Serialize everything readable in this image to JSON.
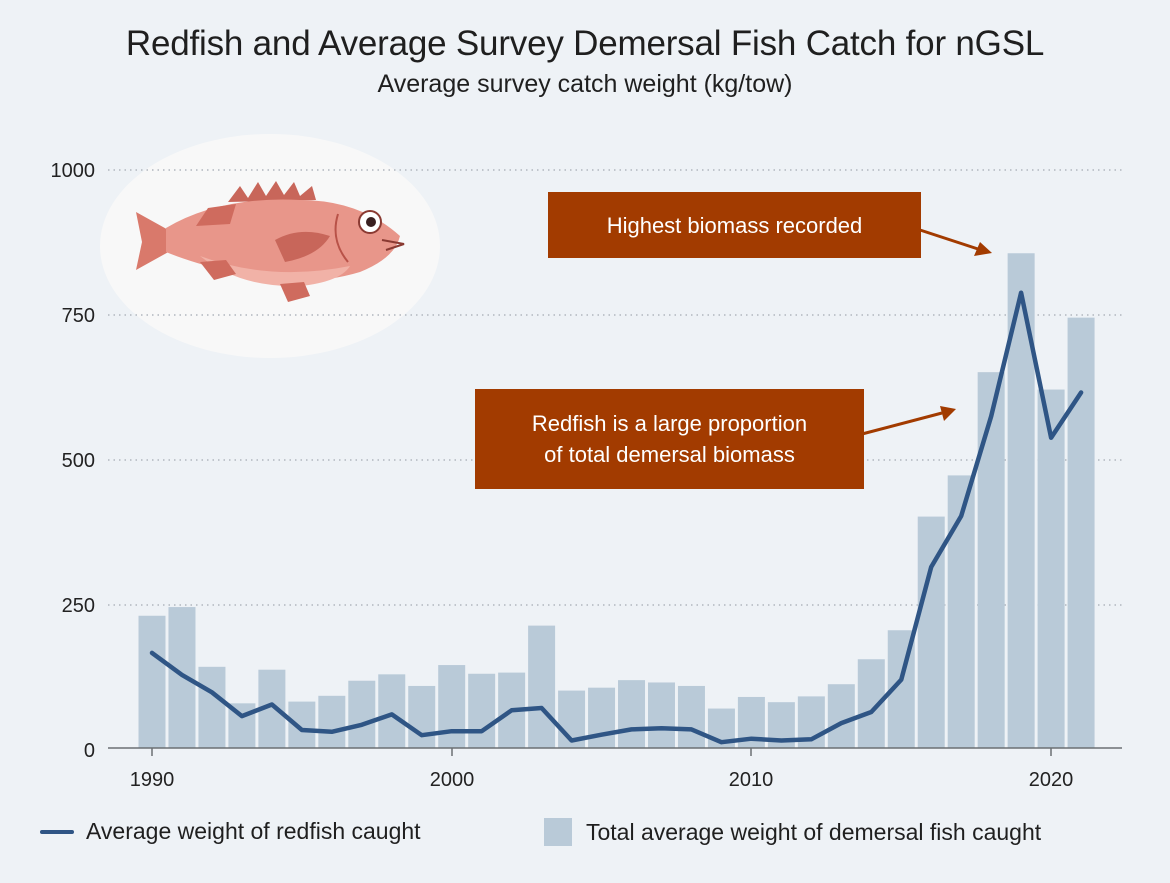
{
  "title": "Redfish and Average Survey Demersal Fish Catch for nGSL",
  "subtitle": "Average survey catch weight (kg/tow)",
  "annotations": {
    "highest": "Highest biomass recorded",
    "proportion_line1": "Redfish is a large proportion",
    "proportion_line2": "of total demersal biomass"
  },
  "legend": {
    "line_label": "Average weight of redfish caught",
    "bar_label": "Total average weight of demersal fish caught"
  },
  "colors": {
    "bar": "#b9cad8",
    "line": "#2f5585",
    "callout": "#a23b00",
    "background": "#eef2f6"
  },
  "icon": "redfish-illustration",
  "chart_data": {
    "type": "bar",
    "title": "Redfish and Average Survey Demersal Fish Catch for nGSL",
    "subtitle": "Average survey catch weight (kg/tow)",
    "xlim": [
      1989,
      2022
    ],
    "ylim": [
      0,
      1000
    ],
    "y_ticks": [
      0,
      250,
      500,
      750,
      1000
    ],
    "x_ticks": [
      1990,
      2000,
      2010,
      2020
    ],
    "grid": "horizontal dotted",
    "legend_position": "bottom",
    "x": [
      1990,
      1991,
      1992,
      1993,
      1994,
      1995,
      1996,
      1997,
      1998,
      1999,
      2000,
      2001,
      2002,
      2003,
      2004,
      2005,
      2006,
      2007,
      2008,
      2009,
      2010,
      2011,
      2012,
      2013,
      2014,
      2015,
      2016,
      2017,
      2018,
      2019,
      2020,
      2021
    ],
    "series": [
      {
        "name": "Total average weight of demersal fish caught",
        "type": "bar",
        "values": [
          228,
          243,
          140,
          77,
          135,
          80,
          90,
          116,
          127,
          107,
          143,
          128,
          130,
          211,
          99,
          104,
          117,
          113,
          107,
          68,
          88,
          79,
          89,
          110,
          153,
          203,
          399,
          470,
          648,
          853,
          618,
          742
        ]
      },
      {
        "name": "Average weight of redfish caught",
        "type": "line",
        "values": [
          164,
          126,
          96,
          55,
          75,
          31,
          28,
          40,
          58,
          22,
          29,
          29,
          65,
          69,
          13,
          23,
          32,
          34,
          32,
          10,
          16,
          13,
          15,
          43,
          62,
          118,
          312,
          400,
          572,
          785,
          535,
          613
        ]
      }
    ]
  }
}
